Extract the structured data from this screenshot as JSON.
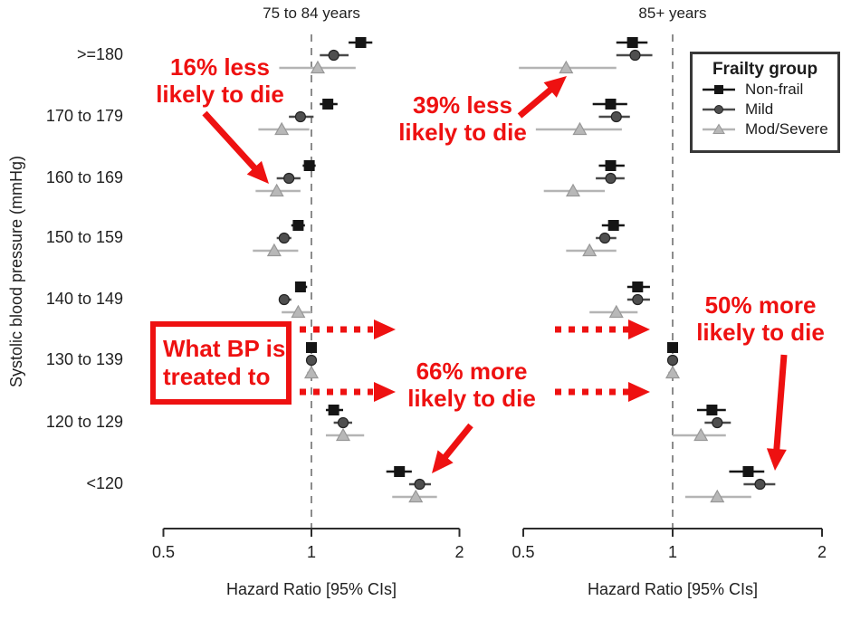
{
  "figure": {
    "background": "#ffffff",
    "axis_color": "#2d2d2d",
    "text_color": "#1f1f1f",
    "reference_line_color": "#8c8c8c"
  },
  "legend": {
    "title": "Frailty group",
    "items": [
      {
        "label": "Non-frail",
        "marker": "square",
        "color": "#151515",
        "line_color": "#151515"
      },
      {
        "label": "Mild",
        "marker": "circle",
        "color": "#4f4f4f",
        "line_color": "#4a4a4a"
      },
      {
        "label": "Mod/Severe",
        "marker": "triangle",
        "color": "#b8b8b8",
        "line_color": "#b4b4b4"
      }
    ]
  },
  "annotations": {
    "color": "#ee1111",
    "note_16": {
      "line1": "16% less",
      "line2": "likely to die"
    },
    "note_39": {
      "line1": "39% less",
      "line2": "likely to die"
    },
    "treat_box": {
      "line1": "What BP is",
      "line2": "treated to"
    },
    "note_66": {
      "line1": "66% more",
      "line2": "likely to die"
    },
    "note_50": {
      "line1": "50% more",
      "line2": "likely to die"
    }
  },
  "chart_data": {
    "type": "scatter",
    "subtype": "forest-plot",
    "x_scale": "log",
    "x_ticks": [
      0.5,
      1,
      2
    ],
    "x_range": [
      0.5,
      2
    ],
    "reference_value": 1,
    "xlabel": "Hazard Ratio [95% CIs]",
    "ylabel": "Systolic blood pressure (mmHg)",
    "categories": [
      ">=180",
      "170 to 179",
      "160 to 169",
      "150 to 159",
      "140 to 149",
      "130 to 139",
      "120 to 129",
      "<120"
    ],
    "panels": [
      {
        "title": "75 to 84 years",
        "series": [
          {
            "name": "Non-frail",
            "marker": "square",
            "color": "#151515",
            "ci_color": "#151515",
            "values": [
              {
                "hr": 1.26,
                "lo": 1.19,
                "hi": 1.33
              },
              {
                "hr": 1.08,
                "lo": 1.04,
                "hi": 1.13
              },
              {
                "hr": 0.99,
                "lo": 0.96,
                "hi": 1.02
              },
              {
                "hr": 0.94,
                "lo": 0.91,
                "hi": 0.97
              },
              {
                "hr": 0.95,
                "lo": 0.93,
                "hi": 0.98
              },
              {
                "hr": 1.0,
                "lo": 0.99,
                "hi": 1.01
              },
              {
                "hr": 1.11,
                "lo": 1.07,
                "hi": 1.16
              },
              {
                "hr": 1.51,
                "lo": 1.42,
                "hi": 1.6
              }
            ]
          },
          {
            "name": "Mild",
            "marker": "circle",
            "color": "#4f4f4f",
            "ci_color": "#4a4a4a",
            "values": [
              {
                "hr": 1.11,
                "lo": 1.04,
                "hi": 1.19
              },
              {
                "hr": 0.95,
                "lo": 0.9,
                "hi": 1.01
              },
              {
                "hr": 0.9,
                "lo": 0.85,
                "hi": 0.95
              },
              {
                "hr": 0.88,
                "lo": 0.85,
                "hi": 0.91
              },
              {
                "hr": 0.88,
                "lo": 0.86,
                "hi": 0.91
              },
              {
                "hr": 1.0,
                "lo": 0.99,
                "hi": 1.01
              },
              {
                "hr": 1.16,
                "lo": 1.11,
                "hi": 1.21
              },
              {
                "hr": 1.66,
                "lo": 1.58,
                "hi": 1.75
              }
            ]
          },
          {
            "name": "Mod/Severe",
            "marker": "triangle",
            "color": "#b8b8b8",
            "ci_color": "#b4b4b4",
            "values": [
              {
                "hr": 1.03,
                "lo": 0.86,
                "hi": 1.23
              },
              {
                "hr": 0.87,
                "lo": 0.78,
                "hi": 0.99
              },
              {
                "hr": 0.85,
                "lo": 0.77,
                "hi": 0.95
              },
              {
                "hr": 0.84,
                "lo": 0.76,
                "hi": 0.94
              },
              {
                "hr": 0.94,
                "lo": 0.87,
                "hi": 1.0
              },
              {
                "hr": 1.0,
                "lo": 0.98,
                "hi": 1.02
              },
              {
                "hr": 1.16,
                "lo": 1.07,
                "hi": 1.28
              },
              {
                "hr": 1.63,
                "lo": 1.46,
                "hi": 1.8
              }
            ]
          }
        ]
      },
      {
        "title": "85+ years",
        "series": [
          {
            "name": "Non-frail",
            "marker": "square",
            "color": "#151515",
            "ci_color": "#151515",
            "values": [
              {
                "hr": 0.83,
                "lo": 0.77,
                "hi": 0.89
              },
              {
                "hr": 0.75,
                "lo": 0.69,
                "hi": 0.81
              },
              {
                "hr": 0.75,
                "lo": 0.71,
                "hi": 0.8
              },
              {
                "hr": 0.76,
                "lo": 0.72,
                "hi": 0.8
              },
              {
                "hr": 0.85,
                "lo": 0.81,
                "hi": 0.9
              },
              {
                "hr": 1.0,
                "lo": 0.99,
                "hi": 1.01
              },
              {
                "hr": 1.2,
                "lo": 1.12,
                "hi": 1.28
              },
              {
                "hr": 1.42,
                "lo": 1.3,
                "hi": 1.53
              }
            ]
          },
          {
            "name": "Mild",
            "marker": "circle",
            "color": "#4f4f4f",
            "ci_color": "#4a4a4a",
            "values": [
              {
                "hr": 0.84,
                "lo": 0.77,
                "hi": 0.91
              },
              {
                "hr": 0.77,
                "lo": 0.71,
                "hi": 0.82
              },
              {
                "hr": 0.75,
                "lo": 0.7,
                "hi": 0.8
              },
              {
                "hr": 0.73,
                "lo": 0.7,
                "hi": 0.77
              },
              {
                "hr": 0.85,
                "lo": 0.81,
                "hi": 0.9
              },
              {
                "hr": 1.0,
                "lo": 0.99,
                "hi": 1.01
              },
              {
                "hr": 1.23,
                "lo": 1.16,
                "hi": 1.31
              },
              {
                "hr": 1.5,
                "lo": 1.39,
                "hi": 1.61
              }
            ]
          },
          {
            "name": "Mod/Severe",
            "marker": "triangle",
            "color": "#b8b8b8",
            "ci_color": "#b4b4b4",
            "values": [
              {
                "hr": 0.61,
                "lo": 0.49,
                "hi": 0.77
              },
              {
                "hr": 0.65,
                "lo": 0.53,
                "hi": 0.79
              },
              {
                "hr": 0.63,
                "lo": 0.55,
                "hi": 0.73
              },
              {
                "hr": 0.68,
                "lo": 0.61,
                "hi": 0.77
              },
              {
                "hr": 0.77,
                "lo": 0.68,
                "hi": 0.85
              },
              {
                "hr": 1.0,
                "lo": 0.98,
                "hi": 1.02
              },
              {
                "hr": 1.14,
                "lo": 1.0,
                "hi": 1.28
              },
              {
                "hr": 1.23,
                "lo": 1.06,
                "hi": 1.44
              }
            ]
          }
        ]
      }
    ]
  }
}
